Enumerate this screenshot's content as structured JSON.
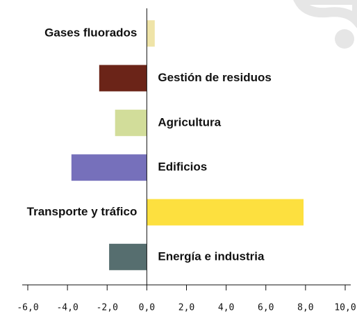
{
  "chart_data": {
    "type": "hbar",
    "categories": [
      "Gases fluorados",
      "Gestión de residuos",
      "Agricultura",
      "Edificios",
      "Transporte y tráfico",
      "Energía e industria"
    ],
    "values": [
      0.4,
      -2.4,
      -1.6,
      -3.8,
      7.9,
      -1.9
    ],
    "colors": [
      "#efe4a8",
      "#6b2418",
      "#d2dd9a",
      "#7670bb",
      "#fde03f",
      "#566e6f"
    ],
    "xlim": [
      -6,
      10
    ],
    "xticks": [
      {
        "value": -6,
        "label": "-6,0"
      },
      {
        "value": -4,
        "label": "-4,0"
      },
      {
        "value": -2,
        "label": "-2,0"
      },
      {
        "value": 0,
        "label": "0,0"
      },
      {
        "value": 2,
        "label": "2,0"
      },
      {
        "value": 4,
        "label": "4,0"
      },
      {
        "value": 6,
        "label": "6,0"
      },
      {
        "value": 8,
        "label": "8,0"
      },
      {
        "value": 10,
        "label": "10,0"
      }
    ]
  }
}
